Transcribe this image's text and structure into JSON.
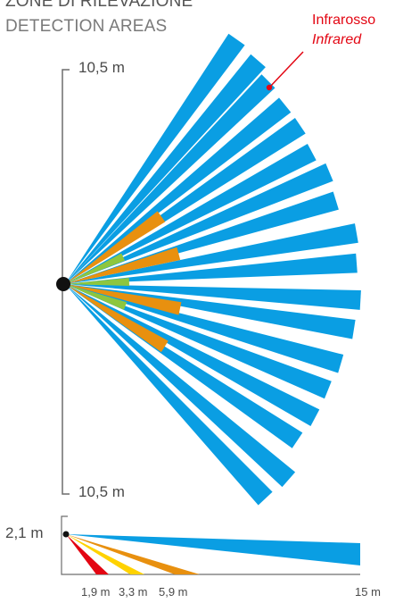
{
  "title": {
    "it": "ZONE DI RILEVAZIONE",
    "en": "DETECTION AREAS"
  },
  "legend": {
    "label_it": "Infrarosso",
    "label_en": "Infrared",
    "color": "#e30613"
  },
  "plan_view": {
    "range_top": "10,5 m",
    "range_bottom": "10,5 m"
  },
  "side_view": {
    "height_label": "2,1 m",
    "ticks": [
      "1,9 m",
      "3,3 m",
      "5,9 m",
      "15 m"
    ],
    "colors": {
      "red": "#e30613",
      "yellow": "#ffd200",
      "orange": "#e8900f",
      "blue": "#0a9ee3"
    }
  },
  "colors": {
    "long_range": "#0a9ee3",
    "mid_range": "#e8900f",
    "short_range": "#8dc63f",
    "axis": "#6d6d6d",
    "sensor": "#111111"
  }
}
